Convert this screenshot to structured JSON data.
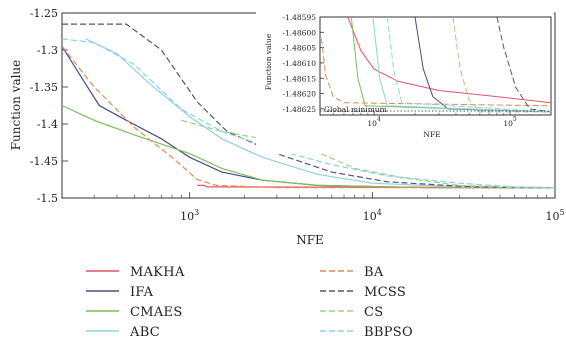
{
  "chart_data": [
    {
      "type": "line",
      "xlabel": "NFE",
      "ylabel": "Function value",
      "xscale": "log",
      "xlim": [
        200,
        100000
      ],
      "ylim": [
        -1.5,
        -1.25
      ],
      "xtick_labels": [
        {
          "value": 1000,
          "base": "10",
          "exp": "3"
        },
        {
          "value": 10000,
          "base": "10",
          "exp": "4"
        },
        {
          "value": 100000,
          "base": "10",
          "exp": "5"
        }
      ],
      "ytick_labels": [
        "-1.25",
        "-1.3",
        "-1.35",
        "-1.4",
        "-1.45",
        "-1.5"
      ],
      "yticks": [
        -1.25,
        -1.3,
        -1.35,
        -1.4,
        -1.45,
        -1.5
      ],
      "grid": false,
      "legend_position": "below",
      "series": [
        {
          "name": "MAKHA",
          "color": "#e0556a",
          "dash": "solid",
          "points": [
            [
              1100,
              -1.483
            ],
            [
              1200,
              -1.483
            ],
            [
              1250,
              -1.485
            ],
            [
              100000,
              -1.486
            ]
          ]
        },
        {
          "name": "IFA",
          "color": "#4a4a8e",
          "dash": "solid",
          "points": [
            [
              200,
              -1.295
            ],
            [
              260,
              -1.34
            ],
            [
              320,
              -1.375
            ],
            [
              450,
              -1.395
            ],
            [
              700,
              -1.42
            ],
            [
              1000,
              -1.445
            ],
            [
              1500,
              -1.465
            ],
            [
              2500,
              -1.476
            ],
            [
              5000,
              -1.483
            ],
            [
              20000,
              -1.486
            ],
            [
              100000,
              -1.486
            ]
          ]
        },
        {
          "name": "CMAES",
          "color": "#7cbf5a",
          "dash": "solid",
          "points": [
            [
              200,
              -1.375
            ],
            [
              300,
              -1.395
            ],
            [
              500,
              -1.415
            ],
            [
              1000,
              -1.44
            ],
            [
              1500,
              -1.46
            ],
            [
              2500,
              -1.476
            ],
            [
              5000,
              -1.483
            ],
            [
              20000,
              -1.486
            ],
            [
              100000,
              -1.486
            ]
          ]
        },
        {
          "name": "ABC",
          "color": "#8fd0e6",
          "dash": "solid",
          "points": [
            [
              270,
              -1.285
            ],
            [
              400,
              -1.305
            ],
            [
              600,
              -1.345
            ],
            [
              1000,
              -1.39
            ],
            [
              1500,
              -1.42
            ],
            [
              2500,
              -1.445
            ],
            [
              5000,
              -1.468
            ],
            [
              10000,
              -1.48
            ],
            [
              30000,
              -1.485
            ],
            [
              100000,
              -1.486
            ]
          ]
        },
        {
          "name": "BA",
          "color": "#e08a55",
          "dash": "dashed",
          "points": [
            [
              200,
              -1.295
            ],
            [
              300,
              -1.35
            ],
            [
              500,
              -1.405
            ],
            [
              800,
              -1.445
            ],
            [
              1100,
              -1.475
            ],
            [
              1400,
              -1.483
            ],
            [
              3000,
              -1.486
            ],
            [
              100000,
              -1.486
            ]
          ]
        },
        {
          "name": "MCSS",
          "color": "#555577",
          "dash": "dashed",
          "points": [
            [
              200,
              -1.265
            ],
            [
              450,
              -1.265
            ],
            [
              700,
              -1.3
            ],
            [
              1100,
              -1.37
            ],
            [
              1600,
              -1.41
            ],
            [
              3000,
              -1.44
            ],
            [
              6000,
              -1.465
            ],
            [
              12000,
              -1.478
            ],
            [
              30000,
              -1.484
            ],
            [
              60000,
              -1.486
            ],
            [
              100000,
              -1.486
            ]
          ]
        },
        {
          "name": "CS",
          "color": "#9cd080",
          "dash": "dashed",
          "points": [
            [
              900,
              -1.395
            ],
            [
              1500,
              -1.41
            ],
            [
              2500,
              -1.42
            ],
            [
              5000,
              -1.438
            ],
            [
              8000,
              -1.46
            ],
            [
              15000,
              -1.473
            ],
            [
              30000,
              -1.483
            ],
            [
              60000,
              -1.486
            ],
            [
              100000,
              -1.486
            ]
          ]
        },
        {
          "name": "BBPSO",
          "color": "#8fd0e6",
          "dash": "dashed",
          "points": [
            [
              200,
              -1.285
            ],
            [
              300,
              -1.29
            ],
            [
              500,
              -1.32
            ],
            [
              900,
              -1.38
            ],
            [
              1500,
              -1.41
            ],
            [
              3000,
              -1.435
            ],
            [
              6000,
              -1.455
            ],
            [
              12000,
              -1.47
            ],
            [
              30000,
              -1.48
            ],
            [
              60000,
              -1.485
            ],
            [
              100000,
              -1.486
            ]
          ]
        }
      ]
    },
    {
      "type": "line",
      "xlabel": "NFE",
      "ylabel": "Function value",
      "xscale": "log",
      "xlim": [
        4000,
        200000
      ],
      "ylim": [
        -1.48627,
        -1.48595
      ],
      "xtick_labels": [
        {
          "value": 10000,
          "base": "10",
          "exp": "4"
        },
        {
          "value": 100000,
          "base": "10",
          "exp": "5"
        }
      ],
      "ytick_labels": [
        "-1.48595",
        "-1.48600",
        "-1.48605",
        "-1.48610",
        "-1.48615",
        "-1.48620",
        "-1.48625"
      ],
      "yticks": [
        -1.48595,
        -1.486,
        -1.48605,
        -1.4861,
        -1.48615,
        -1.4862,
        -1.48625
      ],
      "annotation": "Global minimum",
      "global_minimum": -1.486257,
      "series": [
        {
          "name": "MAKHA",
          "color": "#e0556a",
          "dash": "solid",
          "points": [
            [
              6400,
              -1.48595
            ],
            [
              8000,
              -1.48606
            ],
            [
              10000,
              -1.48612
            ],
            [
              15000,
              -1.48616
            ],
            [
              30000,
              -1.48619
            ],
            [
              80000,
              -1.48621
            ],
            [
              200000,
              -1.48623
            ]
          ]
        },
        {
          "name": "IFA",
          "color": "#4a4a8e",
          "dash": "solid",
          "points": [
            [
              20000,
              -1.48595
            ],
            [
              23000,
              -1.48612
            ],
            [
              27000,
              -1.48621
            ],
            [
              35000,
              -1.48625
            ],
            [
              200000,
              -1.48626
            ]
          ]
        },
        {
          "name": "CMAES",
          "color": "#7cbf5a",
          "dash": "solid",
          "points": [
            [
              6800,
              -1.48595
            ],
            [
              7600,
              -1.48615
            ],
            [
              8600,
              -1.48624
            ],
            [
              200000,
              -1.48626
            ]
          ]
        },
        {
          "name": "ABC",
          "color": "#8fd0e6",
          "dash": "solid",
          "points": [
            [
              9800,
              -1.48595
            ],
            [
              11000,
              -1.48615
            ],
            [
              12500,
              -1.48624
            ],
            [
              200000,
              -1.48626
            ]
          ]
        },
        {
          "name": "BA",
          "color": "#e08a55",
          "dash": "dashed",
          "points": [
            [
              4100,
              -1.48602
            ],
            [
              4400,
              -1.48614
            ],
            [
              5000,
              -1.48621
            ],
            [
              6000,
              -1.48623
            ],
            [
              200000,
              -1.48624
            ]
          ]
        },
        {
          "name": "MCSS",
          "color": "#555577",
          "dash": "dashed",
          "points": [
            [
              80000,
              -1.48595
            ],
            [
              90000,
              -1.48605
            ],
            [
              110000,
              -1.48618
            ],
            [
              140000,
              -1.48625
            ],
            [
              200000,
              -1.48626
            ]
          ]
        },
        {
          "name": "CS",
          "color": "#9cd080",
          "dash": "dashed",
          "points": [
            [
              38000,
              -1.48595
            ],
            [
              43000,
              -1.48612
            ],
            [
              50000,
              -1.48622
            ],
            [
              60000,
              -1.48626
            ],
            [
              200000,
              -1.48626
            ]
          ]
        },
        {
          "name": "BBPSO",
          "color": "#8fd0e6",
          "dash": "dashed",
          "points": [
            [
              12500,
              -1.48595
            ],
            [
              14000,
              -1.48613
            ],
            [
              16000,
              -1.48623
            ],
            [
              200000,
              -1.48626
            ]
          ]
        }
      ]
    }
  ]
}
